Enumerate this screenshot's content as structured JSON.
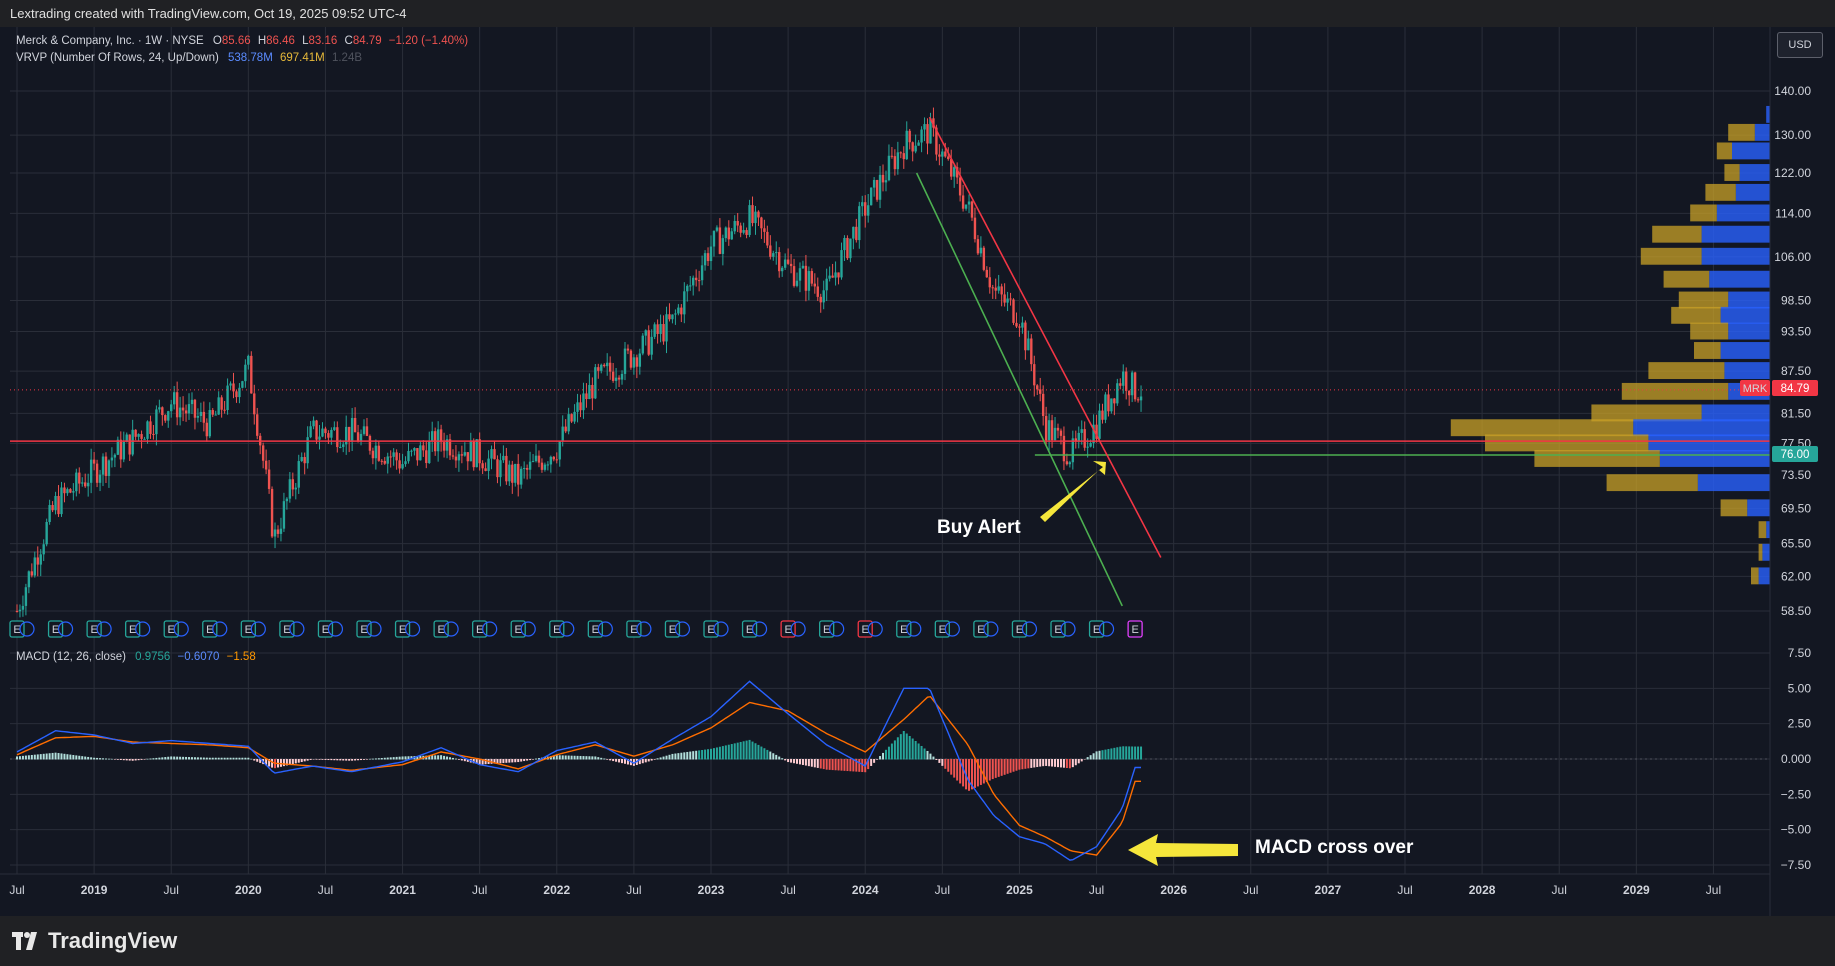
{
  "header": {
    "credit": "Lextrading created with TradingView.com, Oct 19, 2025 09:52 UTC-4"
  },
  "legend": {
    "symbol": "Merck & Company, Inc. · 1W · NYSE",
    "o_label": "O",
    "o_value": "85.66",
    "h_label": "H",
    "h_value": "86.46",
    "l_label": "L",
    "l_value": "83.16",
    "c_label": "C",
    "c_value": "84.79",
    "change": "−1.20 (−1.40%)",
    "vrvp_label": "VRVP (Number Of Rows, 24, Up/Down)",
    "vrvp_up": "538.78M",
    "vrvp_down": "697.41M",
    "vrvp_total": "1.24B",
    "macd_label": "MACD (12, 26, close)",
    "macd_hist": "0.9756",
    "macd_line": "−0.6070",
    "macd_signal": "−1.58"
  },
  "currency_button": "USD",
  "price_tags": {
    "symbol": "MRK",
    "last_price": "84.79",
    "support_price": "76.00"
  },
  "annotations": {
    "buy_alert": "Buy Alert",
    "macd_cross": "MACD cross over"
  },
  "earnings_marker": "E",
  "brand": "TradingView",
  "colors": {
    "background": "#131722",
    "up": "#26a69a",
    "down": "#ef5350",
    "macd_line": "#2962ff",
    "signal_line": "#ff6d00",
    "resistance_trendline": "#f23645",
    "support_trendline": "#4caf50",
    "volume_up": "#2962ff",
    "volume_down": "#c9a227"
  },
  "chart_data": [
    {
      "type": "candlestick",
      "title": "Merck & Company, Inc. · 1W · NYSE",
      "x_ticks": [
        "Jul",
        "2019",
        "Jul",
        "2020",
        "Jul",
        "2021",
        "Jul",
        "2022",
        "Jul",
        "2023",
        "Jul",
        "2024",
        "Jul",
        "2025",
        "Jul",
        "2026",
        "Jul",
        "2027",
        "Jul",
        "2028",
        "Jul",
        "2029",
        "Jul"
      ],
      "y_scale": "log",
      "y_ticks": [
        140.0,
        130.0,
        122.0,
        114.0,
        106.0,
        98.5,
        93.5,
        87.5,
        81.5,
        77.5,
        73.5,
        69.5,
        65.5,
        62.0,
        58.5
      ],
      "ylim": [
        56.5,
        146
      ],
      "series": [
        {
          "name": "MRK",
          "x": [
            "2018-07",
            "2018-10",
            "2019-01",
            "2019-04",
            "2019-07",
            "2019-10",
            "2020-01",
            "2020-03",
            "2020-06",
            "2020-09",
            "2021-01",
            "2021-04",
            "2021-07",
            "2021-10",
            "2022-01",
            "2022-04",
            "2022-07",
            "2022-10",
            "2023-01",
            "2023-04",
            "2023-07",
            "2023-10",
            "2024-01",
            "2024-04",
            "2024-06",
            "2024-09",
            "2024-11",
            "2025-01",
            "2025-03",
            "2025-05",
            "2025-07",
            "2025-09",
            "2025-10"
          ],
          "values": [
            58.5,
            70,
            74,
            78,
            83,
            80,
            88,
            66,
            79,
            79,
            75,
            78,
            76,
            73,
            77,
            86,
            90,
            95,
            108,
            113,
            104,
            100,
            115,
            128,
            131,
            115,
            100,
            96,
            80,
            76,
            80,
            87,
            84.79
          ]
        }
      ],
      "horizontal_lines": [
        {
          "name": "Resistance / VRVP POC",
          "value": 77.8,
          "color": "#f23645"
        },
        {
          "name": "Support",
          "value": 76.0,
          "color": "#4caf50"
        }
      ],
      "trendlines": [
        {
          "name": "Resistance",
          "from": [
            "2024-06",
            134
          ],
          "to": [
            "2025-12",
            64
          ],
          "color": "#f23645"
        },
        {
          "name": "Support channel",
          "from": [
            "2024-05",
            122
          ],
          "to": [
            "2025-09",
            59
          ],
          "color": "#4caf50"
        }
      ],
      "last_price": 84.79
    },
    {
      "type": "bar",
      "title": "VRVP (Number Of Rows, 24, Up/Down)",
      "orientation": "horizontal",
      "price_rows": [
        134.5,
        130.5,
        126.5,
        122,
        118,
        114,
        110,
        106,
        102,
        98.5,
        96,
        93.5,
        90.5,
        87.5,
        84.5,
        81.5,
        79.5,
        77.5,
        75.5,
        72.5,
        69.5,
        67,
        64.5,
        62
      ],
      "series": [
        {
          "name": "Up",
          "values": [
            1,
            4,
            10,
            8,
            9,
            14,
            18,
            18,
            16,
            11,
            13,
            11,
            13,
            12,
            11,
            18,
            36,
            32,
            29,
            19,
            6,
            1,
            2,
            3
          ]
        },
        {
          "name": "Down",
          "values": [
            0,
            7,
            4,
            4,
            8,
            7,
            13,
            16,
            12,
            13,
            13,
            10,
            7,
            20,
            28,
            29,
            48,
            43,
            33,
            24,
            7,
            2,
            1,
            2
          ]
        }
      ],
      "xlabel": "",
      "ylabel": ""
    },
    {
      "type": "line",
      "title": "MACD (12, 26, close)",
      "y_ticks": [
        7.5,
        5.0,
        2.5,
        0.0,
        -2.5,
        -5.0,
        -7.5
      ],
      "ylim": [
        -8.3,
        8.0
      ],
      "x": [
        "2018-07",
        "2018-10",
        "2019-01",
        "2019-04",
        "2019-07",
        "2019-10",
        "2020-01",
        "2020-03",
        "2020-06",
        "2020-09",
        "2021-01",
        "2021-04",
        "2021-07",
        "2021-10",
        "2022-01",
        "2022-04",
        "2022-07",
        "2022-10",
        "2023-01",
        "2023-04",
        "2023-07",
        "2023-10",
        "2024-01",
        "2024-04",
        "2024-06",
        "2024-09",
        "2024-11",
        "2025-01",
        "2025-03",
        "2025-05",
        "2025-07",
        "2025-09",
        "2025-10"
      ],
      "series": [
        {
          "name": "MACD",
          "values": [
            0.5,
            2.0,
            1.7,
            1.1,
            1.3,
            1.1,
            0.9,
            -1.0,
            -0.5,
            -0.9,
            -0.2,
            0.8,
            -0.4,
            -0.9,
            0.6,
            1.2,
            -0.3,
            1.4,
            3.0,
            5.5,
            3.2,
            1.0,
            -0.5,
            5.0,
            5.0,
            -1.5,
            -4.0,
            -5.5,
            -6.0,
            -7.2,
            -6.2,
            -3.5,
            -0.6
          ]
        },
        {
          "name": "Signal",
          "values": [
            0.3,
            1.5,
            1.6,
            1.2,
            1.1,
            1.0,
            0.8,
            -0.3,
            -0.5,
            -0.8,
            -0.4,
            0.5,
            0.0,
            -0.7,
            0.3,
            1.0,
            0.2,
            1.0,
            2.2,
            4.0,
            3.4,
            1.8,
            0.5,
            2.8,
            4.5,
            1.0,
            -2.5,
            -4.7,
            -5.5,
            -6.5,
            -6.8,
            -4.5,
            -1.58
          ]
        }
      ],
      "histogram": {
        "name": "Histogram",
        "last": 0.9756
      }
    }
  ]
}
